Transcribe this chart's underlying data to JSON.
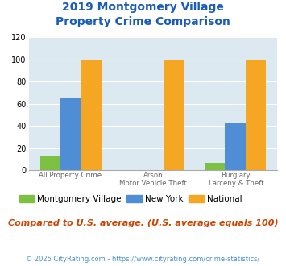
{
  "title_line1": "2019 Montgomery Village",
  "title_line2": "Property Crime Comparison",
  "groups": [
    {
      "label1": "All Property Crime",
      "label2": "",
      "mv": 13,
      "ny": 65,
      "nat": 100
    },
    {
      "label1": "Arson",
      "label2": "Motor Vehicle Theft",
      "mv": 0,
      "ny": 0,
      "nat": 100
    },
    {
      "label1": "Burglary",
      "label2": "Larceny & Theft",
      "mv": 7,
      "ny": 42,
      "nat": 100
    }
  ],
  "color_mv": "#7dc142",
  "color_ny": "#4f8ed4",
  "color_nat": "#f5a623",
  "title_color": "#1a5cb8",
  "background_plot": "#dce9f0",
  "ylim": [
    0,
    120
  ],
  "yticks": [
    0,
    20,
    40,
    60,
    80,
    100,
    120
  ],
  "legend_labels": [
    "Montgomery Village",
    "New York",
    "National"
  ],
  "note": "Compared to U.S. average. (U.S. average equals 100)",
  "footer": "© 2025 CityRating.com - https://www.cityrating.com/crime-statistics/",
  "note_color": "#cc4400",
  "footer_color": "#4a90d9"
}
